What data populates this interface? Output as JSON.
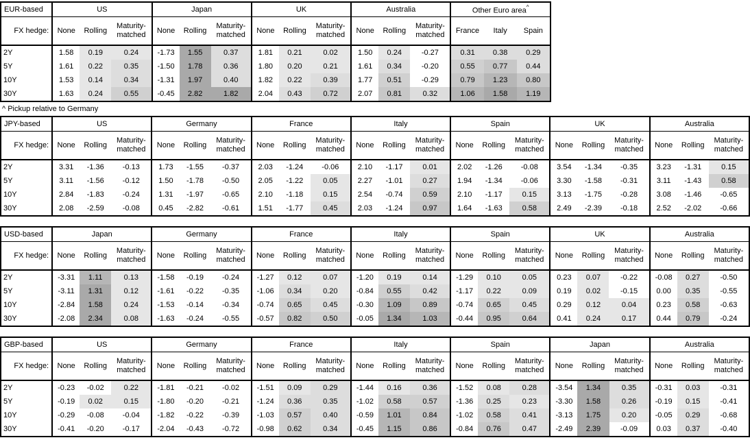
{
  "page": {
    "background": "#ffffff",
    "text_color": "#000000",
    "border_color": "#000000"
  },
  "shading": {
    "negative": "#ffffff",
    "buckets": [
      {
        "max": 0.25,
        "color": "#e6e6e6"
      },
      {
        "max": 0.5,
        "color": "#dddddd"
      },
      {
        "max": 0.75,
        "color": "#d0d0d0"
      },
      {
        "max": 1.0,
        "color": "#c7c7c7"
      },
      {
        "max": 1.3,
        "color": "#b6b6b6"
      },
      {
        "max": 999,
        "color": "#a9a9a9"
      }
    ]
  },
  "labels": {
    "fx_hedge": "FX hedge:",
    "row_labels": [
      "2Y",
      "5Y",
      "10Y",
      "30Y"
    ],
    "hedge_columns": [
      "None",
      "Rolling",
      "Maturity-matched"
    ],
    "footnote": "^ Pickup relative to Germany"
  },
  "tables": [
    {
      "id": "eur-based",
      "base_label": "EUR-based",
      "footnote_after": true,
      "groups": [
        {
          "name": "US",
          "type": "hedge",
          "rows": [
            [
              "1.58",
              "0.19",
              "0.24"
            ],
            [
              "1.61",
              "0.22",
              "0.35"
            ],
            [
              "1.53",
              "0.14",
              "0.34"
            ],
            [
              "1.63",
              "0.24",
              "0.55"
            ]
          ]
        },
        {
          "name": "Japan",
          "type": "hedge",
          "rows": [
            [
              "-1.73",
              "1.55",
              "0.37"
            ],
            [
              "-1.50",
              "1.78",
              "0.36"
            ],
            [
              "-1.31",
              "1.97",
              "0.40"
            ],
            [
              "-0.45",
              "2.82",
              "1.82"
            ]
          ]
        },
        {
          "name": "UK",
          "type": "hedge",
          "rows": [
            [
              "1.81",
              "0.21",
              "0.02"
            ],
            [
              "1.80",
              "0.20",
              "0.21"
            ],
            [
              "1.82",
              "0.22",
              "0.39"
            ],
            [
              "2.04",
              "0.43",
              "0.72"
            ]
          ]
        },
        {
          "name": "Australia",
          "type": "hedge",
          "rows": [
            [
              "1.50",
              "0.24",
              "-0.27"
            ],
            [
              "1.61",
              "0.34",
              "-0.20"
            ],
            [
              "1.77",
              "0.51",
              "-0.29"
            ],
            [
              "2.07",
              "0.81",
              "0.32"
            ]
          ]
        },
        {
          "name": "Other Euro area",
          "superscript": "^",
          "type": "countries",
          "columns": [
            "France",
            "Italy",
            "Spain"
          ],
          "rows": [
            [
              "0.31",
              "0.38",
              "0.29"
            ],
            [
              "0.55",
              "0.77",
              "0.44"
            ],
            [
              "0.79",
              "1.23",
              "0.80"
            ],
            [
              "1.06",
              "1.58",
              "1.19"
            ]
          ]
        }
      ]
    },
    {
      "id": "jpy-based",
      "base_label": "JPY-based",
      "footnote_after": false,
      "groups": [
        {
          "name": "US",
          "type": "hedge",
          "rows": [
            [
              "3.31",
              "-1.36",
              "-0.13"
            ],
            [
              "3.11",
              "-1.56",
              "-0.12"
            ],
            [
              "2.84",
              "-1.83",
              "-0.24"
            ],
            [
              "2.08",
              "-2.59",
              "-0.08"
            ]
          ]
        },
        {
          "name": "Germany",
          "type": "hedge",
          "rows": [
            [
              "1.73",
              "-1.55",
              "-0.37"
            ],
            [
              "1.50",
              "-1.78",
              "-0.50"
            ],
            [
              "1.31",
              "-1.97",
              "-0.65"
            ],
            [
              "0.45",
              "-2.82",
              "-0.61"
            ]
          ]
        },
        {
          "name": "France",
          "type": "hedge",
          "rows": [
            [
              "2.03",
              "-1.24",
              "-0.06"
            ],
            [
              "2.05",
              "-1.22",
              "0.05"
            ],
            [
              "2.10",
              "-1.18",
              "0.15"
            ],
            [
              "1.51",
              "-1.77",
              "0.45"
            ]
          ]
        },
        {
          "name": "Italy",
          "type": "hedge",
          "rows": [
            [
              "2.10",
              "-1.17",
              "0.01"
            ],
            [
              "2.27",
              "-1.01",
              "0.27"
            ],
            [
              "2.54",
              "-0.74",
              "0.59"
            ],
            [
              "2.03",
              "-1.24",
              "0.97"
            ]
          ]
        },
        {
          "name": "Spain",
          "type": "hedge",
          "rows": [
            [
              "2.02",
              "-1.26",
              "-0.08"
            ],
            [
              "1.94",
              "-1.34",
              "-0.06"
            ],
            [
              "2.10",
              "-1.17",
              "0.15"
            ],
            [
              "1.64",
              "-1.63",
              "0.58"
            ]
          ]
        },
        {
          "name": "UK",
          "type": "hedge",
          "rows": [
            [
              "3.54",
              "-1.34",
              "-0.35"
            ],
            [
              "3.30",
              "-1.58",
              "-0.31"
            ],
            [
              "3.13",
              "-1.75",
              "-0.28"
            ],
            [
              "2.49",
              "-2.39",
              "-0.18"
            ]
          ]
        },
        {
          "name": "Australia",
          "type": "hedge",
          "rows": [
            [
              "3.23",
              "-1.31",
              "0.15"
            ],
            [
              "3.11",
              "-1.43",
              "0.58"
            ],
            [
              "3.08",
              "-1.46",
              "-0.65"
            ],
            [
              "2.52",
              "-2.02",
              "-0.66"
            ]
          ]
        }
      ]
    },
    {
      "id": "usd-based",
      "base_label": "USD-based",
      "footnote_after": false,
      "groups": [
        {
          "name": "Japan",
          "type": "hedge",
          "rows": [
            [
              "-3.31",
              "1.11",
              "0.13"
            ],
            [
              "-3.11",
              "1.31",
              "0.12"
            ],
            [
              "-2.84",
              "1.58",
              "0.24"
            ],
            [
              "-2.08",
              "2.34",
              "0.08"
            ]
          ]
        },
        {
          "name": "Germany",
          "type": "hedge",
          "rows": [
            [
              "-1.58",
              "-0.19",
              "-0.24"
            ],
            [
              "-1.61",
              "-0.22",
              "-0.35"
            ],
            [
              "-1.53",
              "-0.14",
              "-0.34"
            ],
            [
              "-1.63",
              "-0.24",
              "-0.55"
            ]
          ]
        },
        {
          "name": "France",
          "type": "hedge",
          "rows": [
            [
              "-1.27",
              "0.12",
              "0.07"
            ],
            [
              "-1.06",
              "0.34",
              "0.20"
            ],
            [
              "-0.74",
              "0.65",
              "0.45"
            ],
            [
              "-0.57",
              "0.82",
              "0.50"
            ]
          ]
        },
        {
          "name": "Italy",
          "type": "hedge",
          "rows": [
            [
              "-1.20",
              "0.19",
              "0.14"
            ],
            [
              "-0.84",
              "0.55",
              "0.42"
            ],
            [
              "-0.30",
              "1.09",
              "0.89"
            ],
            [
              "-0.05",
              "1.34",
              "1.03"
            ]
          ]
        },
        {
          "name": "Spain",
          "type": "hedge",
          "rows": [
            [
              "-1.29",
              "0.10",
              "0.05"
            ],
            [
              "-1.17",
              "0.22",
              "0.09"
            ],
            [
              "-0.74",
              "0.65",
              "0.45"
            ],
            [
              "-0.44",
              "0.95",
              "0.64"
            ]
          ]
        },
        {
          "name": "UK",
          "type": "hedge",
          "rows": [
            [
              "0.23",
              "0.07",
              "-0.22"
            ],
            [
              "0.19",
              "0.02",
              "-0.15"
            ],
            [
              "0.29",
              "0.12",
              "0.04"
            ],
            [
              "0.41",
              "0.24",
              "0.17"
            ]
          ]
        },
        {
          "name": "Australia",
          "type": "hedge",
          "rows": [
            [
              "-0.08",
              "0.27",
              "-0.50"
            ],
            [
              "0.00",
              "0.35",
              "-0.55"
            ],
            [
              "0.23",
              "0.58",
              "-0.63"
            ],
            [
              "0.44",
              "0.79",
              "-0.24"
            ]
          ]
        }
      ]
    },
    {
      "id": "gbp-based",
      "base_label": "GBP-based",
      "footnote_after": false,
      "groups": [
        {
          "name": "US",
          "type": "hedge",
          "rows": [
            [
              "-0.23",
              "-0.02",
              "0.22"
            ],
            [
              "-0.19",
              "0.02",
              "0.15"
            ],
            [
              "-0.29",
              "-0.08",
              "-0.04"
            ],
            [
              "-0.41",
              "-0.20",
              "-0.17"
            ]
          ]
        },
        {
          "name": "Germany",
          "type": "hedge",
          "rows": [
            [
              "-1.81",
              "-0.21",
              "-0.02"
            ],
            [
              "-1.80",
              "-0.20",
              "-0.21"
            ],
            [
              "-1.82",
              "-0.22",
              "-0.39"
            ],
            [
              "-2.04",
              "-0.43",
              "-0.72"
            ]
          ]
        },
        {
          "name": "France",
          "type": "hedge",
          "rows": [
            [
              "-1.51",
              "0.09",
              "0.29"
            ],
            [
              "-1.24",
              "0.36",
              "0.35"
            ],
            [
              "-1.03",
              "0.57",
              "0.40"
            ],
            [
              "-0.98",
              "0.62",
              "0.34"
            ]
          ]
        },
        {
          "name": "Italy",
          "type": "hedge",
          "rows": [
            [
              "-1.44",
              "0.16",
              "0.36"
            ],
            [
              "-1.02",
              "0.58",
              "0.57"
            ],
            [
              "-0.59",
              "1.01",
              "0.84"
            ],
            [
              "-0.45",
              "1.15",
              "0.86"
            ]
          ]
        },
        {
          "name": "Spain",
          "type": "hedge",
          "rows": [
            [
              "-1.52",
              "0.08",
              "0.28"
            ],
            [
              "-1.36",
              "0.25",
              "0.23"
            ],
            [
              "-1.02",
              "0.58",
              "0.41"
            ],
            [
              "-0.84",
              "0.76",
              "0.47"
            ]
          ]
        },
        {
          "name": "Japan",
          "type": "hedge",
          "rows": [
            [
              "-3.54",
              "1.34",
              "0.35"
            ],
            [
              "-3.30",
              "1.58",
              "0.26"
            ],
            [
              "-3.13",
              "1.75",
              "0.20"
            ],
            [
              "-2.49",
              "2.39",
              "-0.09"
            ]
          ]
        },
        {
          "name": "Australia",
          "type": "hedge",
          "rows": [
            [
              "-0.31",
              "0.03",
              "-0.31"
            ],
            [
              "-0.19",
              "0.15",
              "-0.41"
            ],
            [
              "-0.05",
              "0.29",
              "-0.68"
            ],
            [
              "0.03",
              "0.37",
              "-0.40"
            ]
          ]
        }
      ]
    }
  ]
}
